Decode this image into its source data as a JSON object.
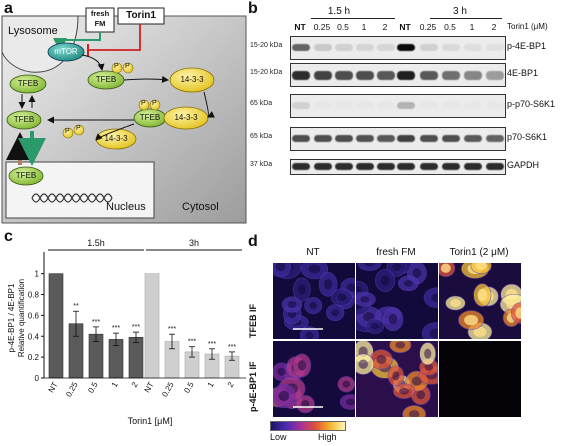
{
  "panel_labels": {
    "a": "a",
    "b": "b",
    "c": "c",
    "d": "d"
  },
  "panel_a": {
    "lysosome": "Lysosome",
    "mtor": "mTOR",
    "fresh_fm": "fresh FM",
    "torin1": "Torin1",
    "tfeb": "TFEB",
    "p": "P",
    "protein_14_3_3": "14-3-3",
    "nucleus": "Nucleus",
    "cytosol": "Cytosol"
  },
  "panel_b": {
    "time_1_5h": "1.5 h",
    "time_3h": "3 h",
    "torin_unit": "Torin1 (μM)",
    "lanes": [
      "NT",
      "0.25",
      "0.5",
      "1",
      "2",
      "NT",
      "0.25",
      "0.5",
      "1",
      "2"
    ],
    "blots": [
      {
        "kda": "15-20 kDa",
        "name": "p-4E-BP1"
      },
      {
        "kda": "15-20 kDa",
        "name": "4E-BP1"
      },
      {
        "kda": "65 kDa",
        "name": "p-p70-S6K1"
      },
      {
        "kda": "65 kDa",
        "name": "p70-S6K1"
      },
      {
        "kda": "37 kDa",
        "name": "GAPDH"
      }
    ]
  },
  "chart_data": {
    "type": "bar",
    "ylabel_line1": "p-4E-BP1 / 4E-BP1",
    "ylabel_line2": "Relative quantification",
    "xlabel": "Torin1 [μM]",
    "group_labels": [
      "1.5h",
      "3h"
    ],
    "categories": [
      "NT",
      "0.25",
      "0.5",
      "1",
      "2",
      "NT",
      "0.25",
      "0.5",
      "1",
      "2"
    ],
    "values": [
      1.0,
      0.52,
      0.42,
      0.37,
      0.39,
      1.0,
      0.35,
      0.25,
      0.23,
      0.21
    ],
    "errors": [
      0,
      0.12,
      0.07,
      0.06,
      0.05,
      0,
      0.07,
      0.05,
      0.05,
      0.04
    ],
    "significance": [
      "",
      "**",
      "***",
      "***",
      "***",
      "",
      "***",
      "***",
      "***",
      "***"
    ],
    "group_colors": [
      "#5a5a5a",
      "#cfcfcf"
    ],
    "yticks": [
      "0",
      "0.2",
      "0.4",
      "0.6",
      "0.8",
      "1"
    ],
    "ylim": [
      0,
      1.15
    ]
  },
  "panel_d": {
    "columns": [
      "NT",
      "fresh FM",
      "Torin1 (2 μM)"
    ],
    "rows": [
      "TFEB IF",
      "p-4E-BP1 IF"
    ],
    "scale_low": "Low",
    "scale_high": "High"
  }
}
